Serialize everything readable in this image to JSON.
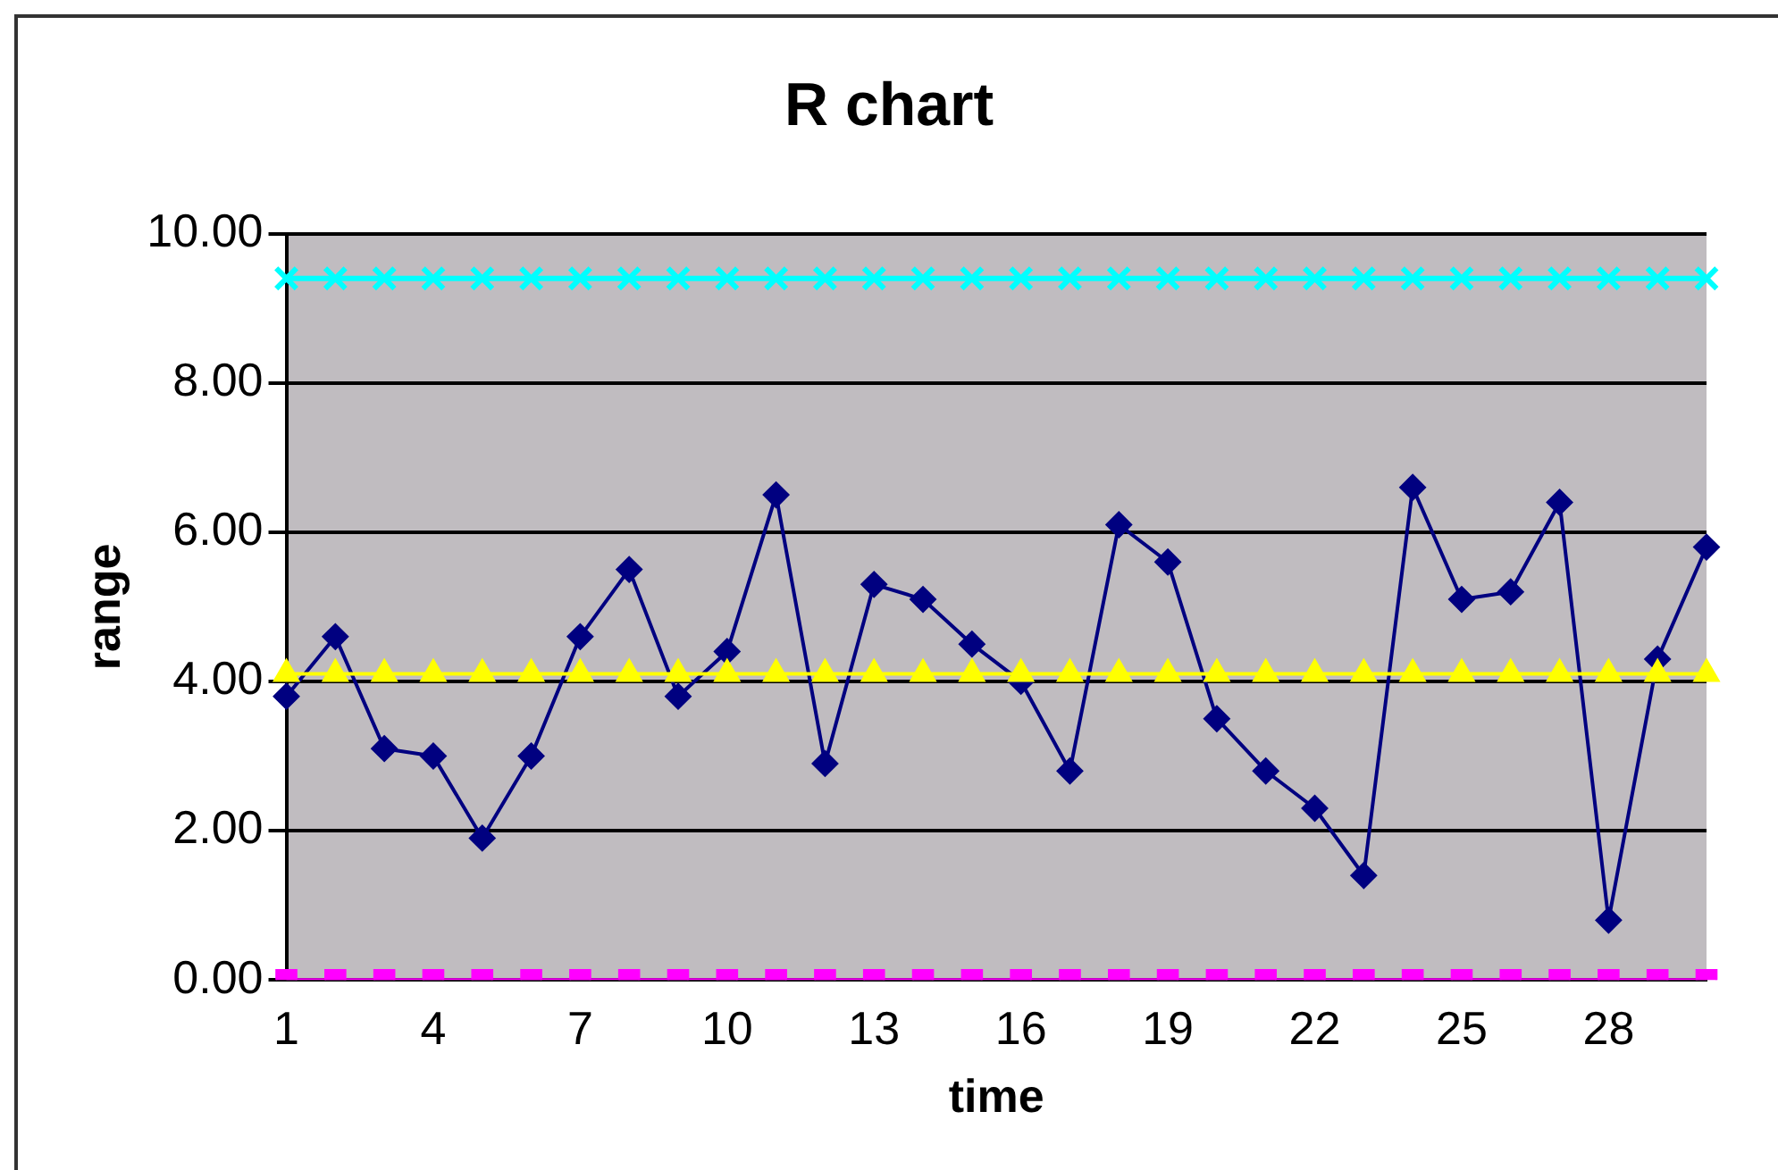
{
  "chart_data": {
    "type": "line",
    "title": "R chart",
    "xlabel": "time",
    "ylabel": "range",
    "categories": [
      "1",
      null,
      null,
      "4",
      null,
      null,
      "7",
      null,
      null,
      "10",
      null,
      null,
      "13",
      null,
      null,
      "16",
      null,
      null,
      "19",
      null,
      null,
      "22",
      null,
      null,
      "25",
      null,
      null,
      "28",
      null,
      null
    ],
    "series": [
      {
        "color": "#000080",
        "marker": "diamond",
        "values": [
          3.8,
          4.6,
          3.1,
          3.0,
          1.9,
          3.0,
          4.6,
          5.5,
          3.8,
          4.4,
          6.5,
          2.9,
          5.3,
          5.1,
          4.5,
          4.0,
          2.8,
          6.1,
          5.6,
          3.5,
          2.8,
          2.3,
          1.4,
          6.6,
          5.1,
          5.2,
          6.4,
          0.8,
          4.3,
          5.8
        ]
      },
      {
        "color": "#00ffff",
        "marker": "cross",
        "values": [
          9.4,
          9.4,
          9.4,
          9.4,
          9.4,
          9.4,
          9.4,
          9.4,
          9.4,
          9.4,
          9.4,
          9.4,
          9.4,
          9.4,
          9.4,
          9.4,
          9.4,
          9.4,
          9.4,
          9.4,
          9.4,
          9.4,
          9.4,
          9.4,
          9.4,
          9.4,
          9.4,
          9.4,
          9.4,
          9.4
        ]
      },
      {
        "color": "#ffff00",
        "marker": "triangle",
        "values": [
          4.1,
          4.1,
          4.1,
          4.1,
          4.1,
          4.1,
          4.1,
          4.1,
          4.1,
          4.1,
          4.1,
          4.1,
          4.1,
          4.1,
          4.1,
          4.1,
          4.1,
          4.1,
          4.1,
          4.1,
          4.1,
          4.1,
          4.1,
          4.1,
          4.1,
          4.1,
          4.1,
          4.1,
          4.1,
          4.1
        ]
      },
      {
        "color": "#ff00ff",
        "marker": "square",
        "values": [
          0,
          0,
          0,
          0,
          0,
          0,
          0,
          0,
          0,
          0,
          0,
          0,
          0,
          0,
          0,
          0,
          0,
          0,
          0,
          0,
          0,
          0,
          0,
          0,
          0,
          0,
          0,
          0,
          0,
          0
        ]
      }
    ],
    "ylim": [
      0,
      10
    ],
    "yticks": [
      {
        "value": 0,
        "label": "0.00"
      },
      {
        "value": 2,
        "label": "2.00"
      },
      {
        "value": 4,
        "label": "4.00"
      },
      {
        "value": 6,
        "label": "6.00"
      },
      {
        "value": 8,
        "label": "8.00"
      },
      {
        "value": 10,
        "label": "10.00"
      }
    ],
    "grid": "y",
    "legend": false
  }
}
